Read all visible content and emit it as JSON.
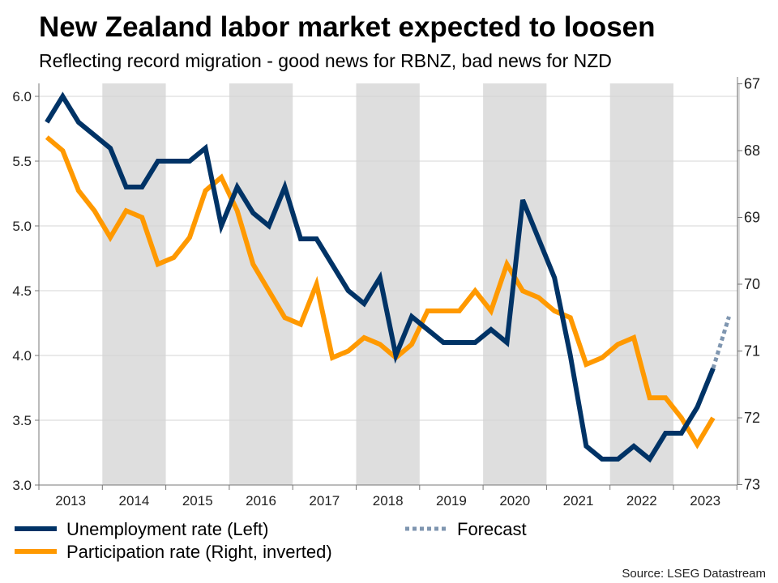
{
  "chart_data": {
    "type": "line",
    "title": "New Zealand labor market expected to loosen",
    "subtitle": "Reflecting record migration - good news for RBNZ, bad news for NZD",
    "source": "Source: LSEG Datastream",
    "x_tick_labels": [
      "2013",
      "2014",
      "2015",
      "2016",
      "2017",
      "2018",
      "2019",
      "2020",
      "2021",
      "2022",
      "2023"
    ],
    "x_range": [
      "2013 Q1",
      "2023 Q4"
    ],
    "frequency": "quarterly",
    "shaded_years": [
      "2014",
      "2016",
      "2018",
      "2020",
      "2022",
      "2024"
    ],
    "y_left": {
      "ticks": [
        "3.0",
        "3.5",
        "4.0",
        "4.5",
        "5.0",
        "5.5",
        "6.0"
      ],
      "range": [
        3.0,
        6.1
      ]
    },
    "y_right": {
      "ticks": [
        "67",
        "68",
        "69",
        "70",
        "71",
        "72",
        "73"
      ],
      "range": [
        67,
        73
      ],
      "inverted": true
    },
    "grid": "horizontal",
    "legend_placement": "bottom",
    "series": [
      {
        "name": "Unemployment rate (Left)",
        "axis": "left",
        "color": "#003366",
        "values": [
          5.8,
          6.0,
          5.8,
          5.7,
          5.6,
          5.3,
          5.3,
          5.5,
          5.5,
          5.5,
          5.6,
          5.0,
          5.3,
          5.1,
          5.0,
          5.3,
          4.9,
          4.9,
          4.7,
          4.5,
          4.4,
          4.6,
          4.0,
          4.3,
          4.2,
          4.1,
          4.1,
          4.1,
          4.2,
          4.1,
          5.2,
          4.9,
          4.6,
          4.0,
          3.3,
          3.2,
          3.2,
          3.3,
          3.2,
          3.4,
          3.4,
          3.6,
          3.9
        ]
      },
      {
        "name": "Participation rate (Right, inverted)",
        "axis": "right",
        "color": "#FF9900",
        "values": [
          67.8,
          68.0,
          68.6,
          68.9,
          69.3,
          68.9,
          69.0,
          69.7,
          69.6,
          69.3,
          68.6,
          68.4,
          68.9,
          69.7,
          70.1,
          70.5,
          70.6,
          70.0,
          71.1,
          71.0,
          70.8,
          70.9,
          71.1,
          70.9,
          70.4,
          70.4,
          70.4,
          70.1,
          70.4,
          69.7,
          70.1,
          70.2,
          70.4,
          70.5,
          71.2,
          71.1,
          70.9,
          70.8,
          71.7,
          71.7,
          72.0,
          72.4,
          72.0
        ]
      },
      {
        "name": "Forecast",
        "axis": "left",
        "color": "#7F96B0",
        "dashed": true,
        "start_index": 42,
        "values": [
          3.9,
          4.3
        ]
      }
    ]
  }
}
